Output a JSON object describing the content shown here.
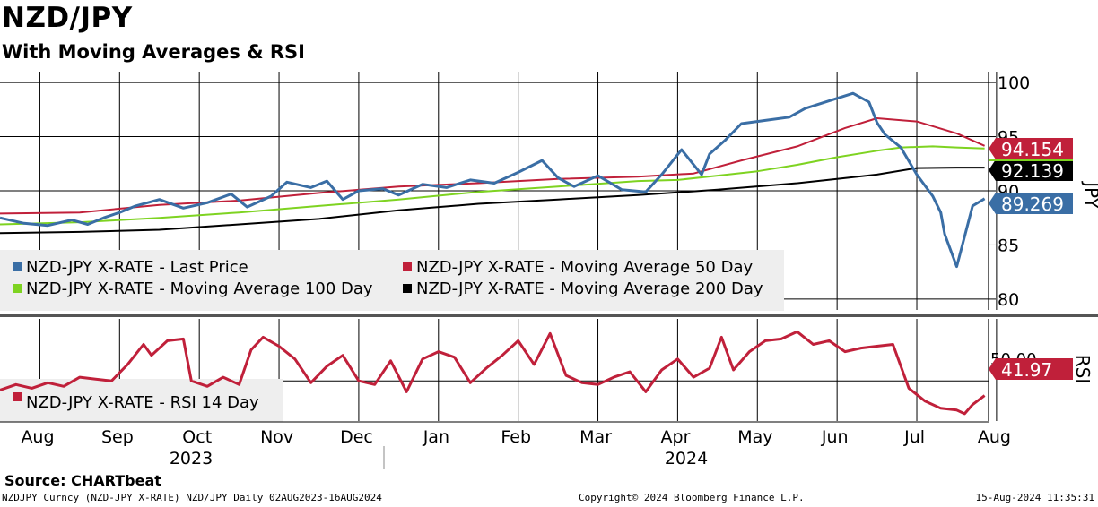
{
  "header": {
    "title": "NZD/JPY",
    "subtitle": "With Moving Averages & RSI"
  },
  "footer": {
    "source": "Source: CHARTbeat",
    "ticker": "NZDJPY Curncy (NZD-JPY X-RATE) NZD/JPY  Daily 02AUG2023-16AUG2024",
    "copyright": "Copyright© 2024 Bloomberg Finance L.P.",
    "timestamp": "15-Aug-2024 11:35:31"
  },
  "colors": {
    "price": "#3a6ea5",
    "ma50": "#c0203a",
    "ma100": "#7ed321",
    "ma200": "#000000",
    "rsi": "#c0203a",
    "grid": "#000000",
    "legend_bg": "#eeeeee"
  },
  "chart_data": [
    {
      "type": "line",
      "title": "NZD/JPY",
      "ylabel": "JPY",
      "ylim": [
        79,
        101
      ],
      "yticks": [
        80,
        85,
        90,
        95,
        100
      ],
      "xlim": [
        0,
        12.4
      ],
      "month_labels": [
        "Aug",
        "Sep",
        "Oct",
        "Nov",
        "Dec",
        "Jan",
        "Feb",
        "Mar",
        "Apr",
        "May",
        "Jun",
        "Jul",
        "Aug"
      ],
      "year_labels": [
        "2023",
        "2024"
      ],
      "last_values": {
        "ma50": "94.154",
        "ma200": "92.139",
        "price": "89.269"
      },
      "series": [
        {
          "name": "NZD-JPY X-RATE - Last Price",
          "key": "price",
          "x": [
            0,
            0.3,
            0.6,
            0.9,
            1.1,
            1.3,
            1.5,
            1.7,
            2.0,
            2.3,
            2.6,
            2.9,
            3.1,
            3.4,
            3.6,
            3.9,
            4.1,
            4.3,
            4.5,
            4.8,
            5.0,
            5.3,
            5.6,
            5.9,
            6.2,
            6.5,
            6.8,
            7.0,
            7.2,
            7.5,
            7.8,
            8.1,
            8.3,
            8.55,
            8.8,
            8.9,
            9.1,
            9.3,
            9.6,
            9.9,
            10.1,
            10.4,
            10.7,
            10.9,
            11.0,
            11.1,
            11.3,
            11.5,
            11.7,
            11.8,
            11.85,
            12.0,
            12.2,
            12.35
          ],
          "values": [
            87.5,
            87.0,
            86.8,
            87.3,
            86.9,
            87.5,
            88.0,
            88.6,
            89.2,
            88.4,
            88.9,
            89.7,
            88.5,
            89.5,
            90.8,
            90.3,
            90.9,
            89.2,
            90.0,
            90.2,
            89.6,
            90.6,
            90.3,
            91.0,
            90.7,
            91.7,
            92.8,
            91.2,
            90.4,
            91.4,
            90.1,
            89.9,
            91.5,
            93.8,
            91.5,
            93.4,
            94.7,
            96.2,
            96.5,
            96.8,
            97.6,
            98.3,
            99.0,
            98.2,
            96.3,
            95.2,
            94.0,
            91.5,
            89.5,
            88.0,
            86.0,
            83.0,
            88.6,
            89.269
          ]
        },
        {
          "name": "NZD-JPY X-RATE - Moving Average 50 Day",
          "key": "ma50",
          "x": [
            0,
            1.0,
            2.0,
            3.0,
            4.0,
            5.0,
            6.0,
            7.0,
            8.0,
            8.7,
            9.3,
            10.0,
            10.6,
            11.0,
            11.5,
            12.0,
            12.35
          ],
          "values": [
            87.9,
            88.0,
            88.7,
            89.1,
            89.8,
            90.4,
            90.7,
            91.1,
            91.3,
            91.6,
            92.8,
            94.1,
            95.8,
            96.7,
            96.4,
            95.3,
            94.154
          ]
        },
        {
          "name": "NZD-JPY X-RATE - Moving Average 100 Day",
          "key": "ma100",
          "x": [
            0,
            1.0,
            2.0,
            3.0,
            4.0,
            5.0,
            6.0,
            7.0,
            8.0,
            8.5,
            9.0,
            9.5,
            10.0,
            10.5,
            11.0,
            11.3,
            11.7,
            12.0,
            12.35
          ],
          "values": [
            86.9,
            87.1,
            87.5,
            88.0,
            88.6,
            89.2,
            89.9,
            90.4,
            90.9,
            91.0,
            91.4,
            91.8,
            92.4,
            93.1,
            93.7,
            94.0,
            94.1,
            94.0,
            93.9
          ]
        },
        {
          "name": "NZD-JPY X-RATE - Moving Average 200 Day",
          "key": "ma200",
          "x": [
            0,
            1.0,
            2.0,
            3.0,
            4.0,
            5.0,
            6.0,
            7.0,
            8.0,
            9.0,
            10.0,
            10.5,
            11.0,
            11.5,
            12.0,
            12.35
          ],
          "values": [
            86.1,
            86.2,
            86.4,
            86.9,
            87.4,
            88.2,
            88.8,
            89.2,
            89.6,
            90.1,
            90.7,
            91.1,
            91.5,
            92.1,
            92.14,
            92.139
          ]
        }
      ],
      "legend": [
        "NZD-JPY X-RATE - Last Price",
        "NZD-JPY X-RATE - Moving Average 50 Day",
        "NZD-JPY X-RATE - Moving Average 100 Day",
        "NZD-JPY X-RATE - Moving Average 200 Day"
      ]
    },
    {
      "type": "line",
      "title": "RSI",
      "ylabel": "RSI",
      "ylim": [
        28,
        84
      ],
      "ytick_label": "50.00",
      "last_value": "41.97",
      "xlim": [
        0,
        12.4
      ],
      "series": [
        {
          "name": "NZD-JPY X-RATE - RSI 14 Day",
          "key": "rsi",
          "x": [
            0,
            0.2,
            0.4,
            0.6,
            0.8,
            1.0,
            1.2,
            1.4,
            1.6,
            1.8,
            1.9,
            2.1,
            2.3,
            2.4,
            2.6,
            2.8,
            3.0,
            3.15,
            3.3,
            3.5,
            3.7,
            3.9,
            4.1,
            4.3,
            4.5,
            4.7,
            4.9,
            5.1,
            5.3,
            5.5,
            5.7,
            5.9,
            6.1,
            6.3,
            6.5,
            6.7,
            6.9,
            7.1,
            7.3,
            7.5,
            7.7,
            7.9,
            8.1,
            8.3,
            8.5,
            8.7,
            8.9,
            9.05,
            9.2,
            9.4,
            9.6,
            9.8,
            10.0,
            10.2,
            10.4,
            10.6,
            10.8,
            11.0,
            11.2,
            11.4,
            11.6,
            11.8,
            12.0,
            12.1,
            12.2,
            12.35
          ],
          "values": [
            45,
            48,
            46,
            49,
            47,
            52,
            51,
            50,
            59,
            70,
            64,
            72,
            73,
            50,
            47,
            52,
            48,
            67,
            74,
            69,
            62,
            49,
            58,
            64,
            50,
            48,
            61,
            44,
            62,
            66,
            63,
            49,
            57,
            64,
            72,
            59,
            76,
            53,
            49,
            48,
            52,
            55,
            44,
            56,
            62,
            52,
            57,
            74,
            56,
            66,
            72,
            73,
            77,
            70,
            72,
            66,
            68,
            69,
            70,
            46,
            39,
            35,
            34,
            32,
            37,
            41.97
          ]
        }
      ],
      "legend": [
        "NZD-JPY X-RATE - RSI 14 Day"
      ]
    }
  ]
}
